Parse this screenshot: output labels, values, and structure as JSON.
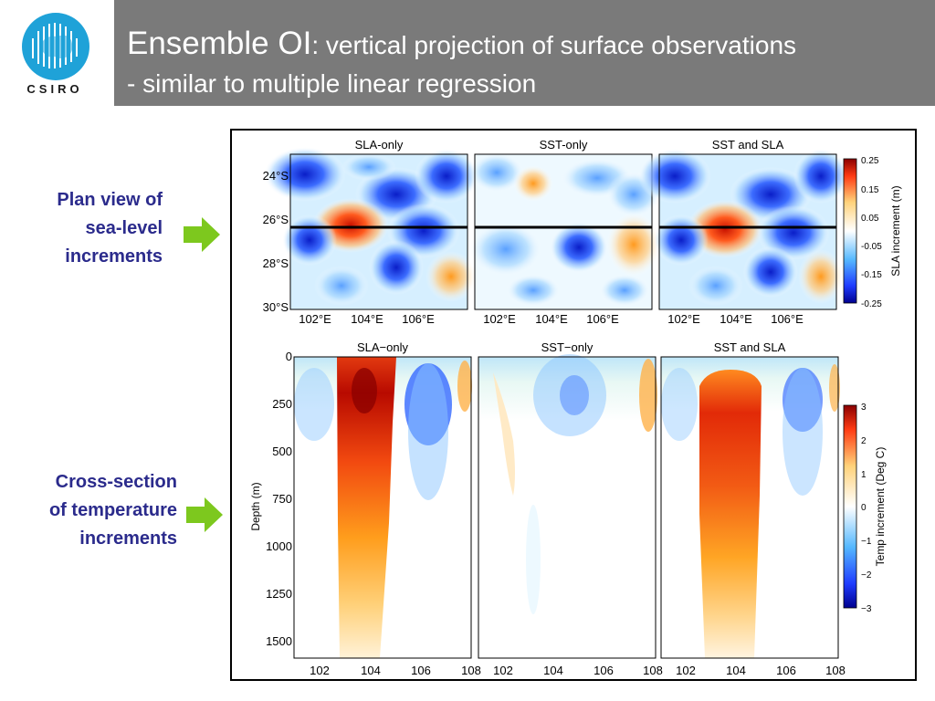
{
  "header": {
    "logo_text": "CSIRO",
    "title_main": "Ensemble OI",
    "title_rest": ": vertical projection of surface observations",
    "title_line2": "- similar to multiple linear regression"
  },
  "side_labels": {
    "plan_view": [
      "Plan view of",
      "sea-level",
      "increments"
    ],
    "cross_section": [
      "Cross-section",
      "of temperature",
      "increments"
    ]
  },
  "colors": {
    "title_bar": "#7a7a7a",
    "side_label": "#2b2b8c",
    "arrow": "#7dc81e",
    "logo_blue": "#1fa2d8"
  },
  "chart_data": [
    {
      "type": "heatmap",
      "panel_titles": [
        "SLA-only",
        "SST-only",
        "SST and SLA"
      ],
      "y_ticks": [
        "24°S",
        "26°S",
        "28°S",
        "30°S"
      ],
      "x_ticks": [
        "102°E",
        "104°E",
        "106°E"
      ],
      "colorbar": {
        "label": "SLA increment (m)",
        "ticks": [
          "0.25",
          "0.15",
          "0.05",
          "-0.05",
          "-0.15",
          "-0.25"
        ],
        "range": [
          -0.25,
          0.25
        ]
      },
      "section_line_lat": "26°S"
    },
    {
      "type": "heatmap",
      "panel_titles": [
        "SLA−only",
        "SST−only",
        "SST and SLA"
      ],
      "ylabel": "Depth (m)",
      "y_ticks": [
        "0",
        "250",
        "500",
        "750",
        "1000",
        "1250",
        "1500"
      ],
      "x_ticks_panels": [
        [
          "102",
          "104",
          "106",
          "108"
        ],
        [
          "102",
          "104",
          "106",
          "108"
        ],
        [
          "102",
          "104",
          "106",
          "108"
        ]
      ],
      "colorbar": {
        "label": "Temp increment (Deg C)",
        "ticks": [
          "3",
          "2",
          "1",
          "0",
          "−1",
          "−2",
          "−3"
        ],
        "range": [
          -3,
          3
        ]
      }
    }
  ]
}
